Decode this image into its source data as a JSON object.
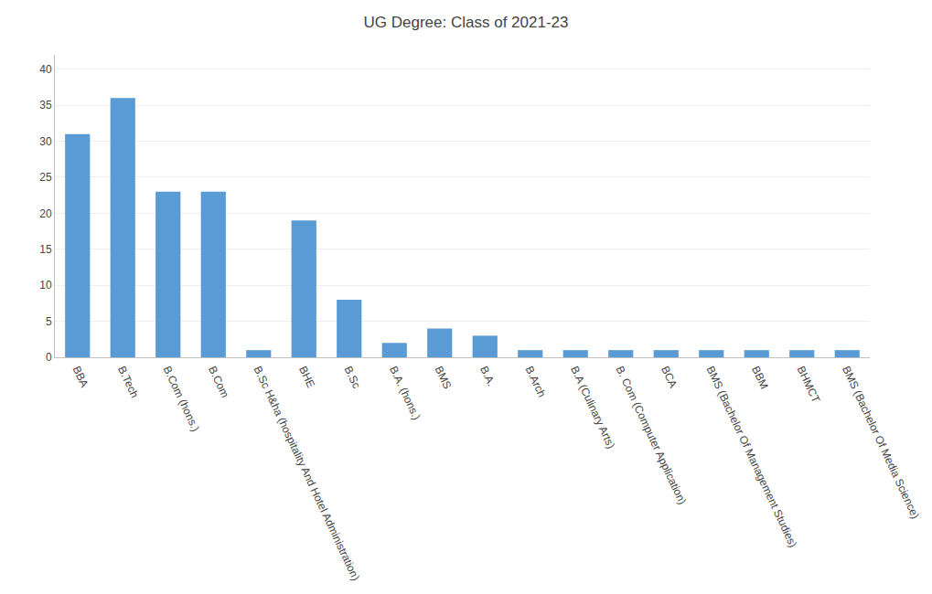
{
  "chart_data": {
    "type": "bar",
    "title": "UG Degree: Class of 2021-23",
    "categories": [
      "BBA",
      "B.Tech",
      "B.Com (hons.)",
      "B.Com",
      "B.Sc H&ha (hospitality And Hotel Administration)",
      "BHE",
      "B.Sc",
      "B.A. (hons.)",
      "BMS",
      "B.A.",
      "B.Arch",
      "B.A (Culinary Arts)",
      "B. Com (Computer Application)",
      "BCA",
      "BMS (Bachelor Of Management Studies)",
      "BBM",
      "BHMCT",
      "BMS (Bachelor Of Media Science)"
    ],
    "values": [
      31,
      36,
      23,
      23,
      1,
      19,
      8,
      2,
      4,
      3,
      1,
      1,
      1,
      1,
      1,
      1,
      1,
      1
    ],
    "color": "#5b9bd5",
    "ylim": [
      0,
      42
    ],
    "yticks": [
      0,
      5,
      10,
      15,
      20,
      25,
      30,
      35,
      40
    ],
    "grid": true
  }
}
